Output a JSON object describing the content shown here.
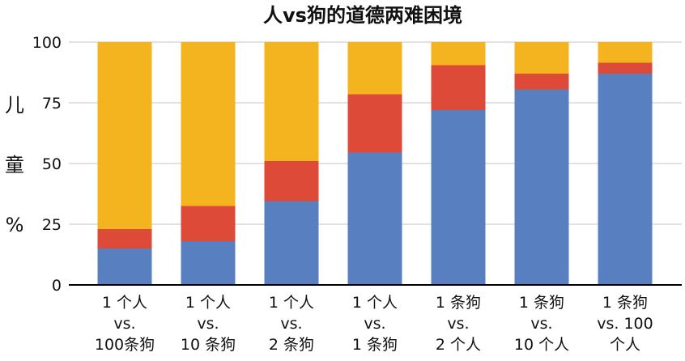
{
  "chart_data": {
    "type": "bar",
    "stacked": true,
    "title": "人vs狗的道德两难困境",
    "ylabel": "儿童%",
    "ylim": [
      0,
      100
    ],
    "yticks": [
      "0",
      "25",
      "50",
      "75",
      "100"
    ],
    "grid": true,
    "categories": [
      [
        "1 个人",
        "vs.",
        "100条狗"
      ],
      [
        "1 个人",
        "vs.",
        "10 条狗"
      ],
      [
        "1 个人",
        "vs.",
        "2 条狗"
      ],
      [
        "1 个人",
        "vs.",
        "1 条狗"
      ],
      [
        "1 条狗",
        "vs.",
        "2 个人"
      ],
      [
        "1 条狗",
        "vs.",
        "10 个人"
      ],
      [
        "1 条狗",
        "vs. 100",
        "个人"
      ]
    ],
    "series": [
      {
        "color": "#5880c0",
        "values": [
          15,
          18,
          34.5,
          54.5,
          72,
          80.5,
          87
        ]
      },
      {
        "color": "#dd4b38",
        "values": [
          8,
          14.5,
          16.5,
          24,
          18.5,
          6.5,
          4.5
        ]
      },
      {
        "color": "#f4b41f",
        "values": [
          77,
          67.5,
          49,
          21.5,
          9.5,
          13,
          8.5
        ]
      }
    ]
  }
}
